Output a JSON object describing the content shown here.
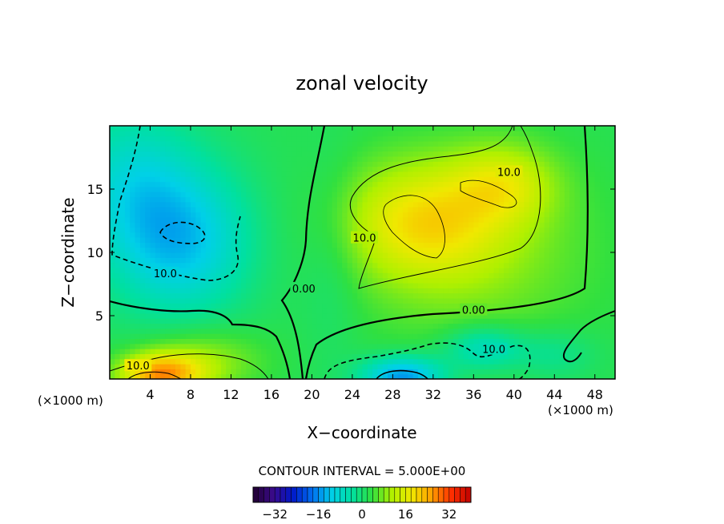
{
  "chart_data": {
    "type": "heatmap",
    "title": "zonal velocity",
    "xlabel": "X−coordinate",
    "ylabel": "Z−coordinate",
    "x_unit_left": "(×1000 m)",
    "x_unit_right": "(×1000 m)",
    "xlim": [
      0,
      50
    ],
    "ylim": [
      0,
      20
    ],
    "x_ticks": [
      {
        "value": 4,
        "label": "4"
      },
      {
        "value": 8,
        "label": "8"
      },
      {
        "value": 12,
        "label": "12"
      },
      {
        "value": 16,
        "label": "16"
      },
      {
        "value": 20,
        "label": "20"
      },
      {
        "value": 24,
        "label": "24"
      },
      {
        "value": 28,
        "label": "28"
      },
      {
        "value": 32,
        "label": "32"
      },
      {
        "value": 36,
        "label": "36"
      },
      {
        "value": 40,
        "label": "40"
      },
      {
        "value": 44,
        "label": "44"
      },
      {
        "value": 48,
        "label": "48"
      }
    ],
    "y_ticks": [
      {
        "value": 5,
        "label": "5"
      },
      {
        "value": 10,
        "label": "10"
      },
      {
        "value": 15,
        "label": "15"
      }
    ],
    "contour_interval_text": "CONTOUR INTERVAL = 5.000E+00",
    "contour_labels": [
      {
        "text": "10.0",
        "x": 39.5,
        "y": 16.3
      },
      {
        "text": "10.0",
        "x": 25.2,
        "y": 11.1
      },
      {
        "text": "0.00",
        "x": 19.2,
        "y": 7.1
      },
      {
        "text": "0.00",
        "x": 36.0,
        "y": 5.4
      },
      {
        "text": "10.0",
        "x": 5.5,
        "y": 8.3
      },
      {
        "text": "10.0",
        "x": 38.0,
        "y": 2.3
      },
      {
        "text": "10.0",
        "x": 2.8,
        "y": 1.0
      }
    ],
    "colorbar": {
      "min": -40,
      "max": 40,
      "ticks": [
        {
          "value": -32,
          "label": "−32"
        },
        {
          "value": -16,
          "label": "−16"
        },
        {
          "value": 0,
          "label": "0"
        },
        {
          "value": 16,
          "label": "16"
        },
        {
          "value": 32,
          "label": "32"
        }
      ],
      "colormap": [
        "#200030",
        "#3a0a8a",
        "#0018c8",
        "#0070f0",
        "#00d0e8",
        "#00e0a0",
        "#30e040",
        "#b0f000",
        "#f0e800",
        "#ffa000",
        "#ff3000",
        "#c00000"
      ]
    },
    "grid": false
  }
}
